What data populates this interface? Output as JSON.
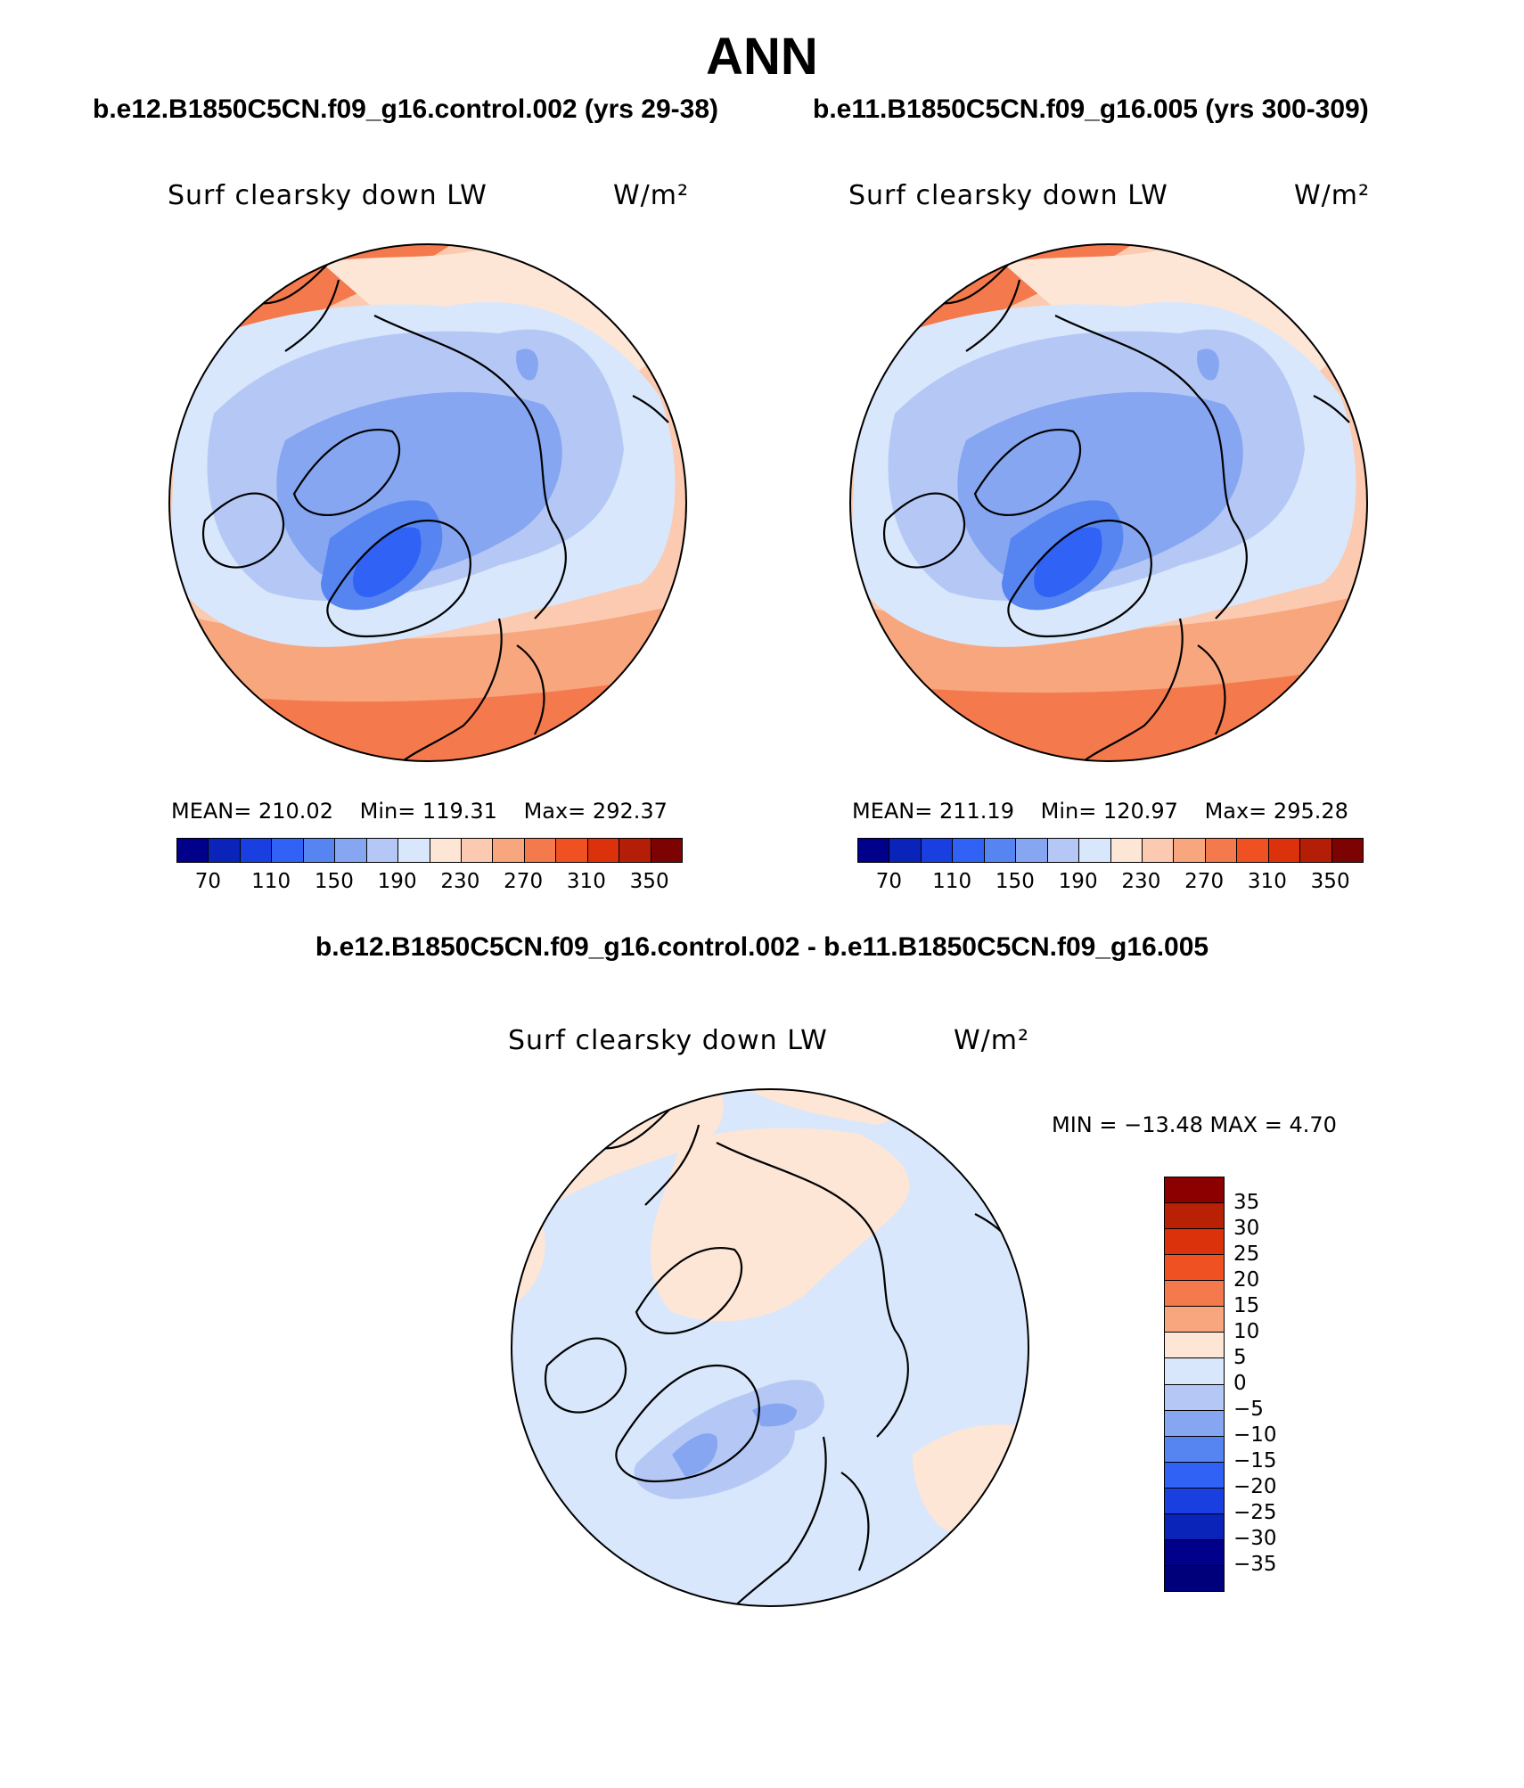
{
  "title": "ANN",
  "diff_title": "b.e12.B1850C5CN.f09_g16.control.002 - b.e11.B1850C5CN.f09_g16.005",
  "panels": [
    {
      "case_title": "b.e12.B1850C5CN.f09_g16.control.002 (yrs 29-38)",
      "variable": "Surf clearsky down LW",
      "units": "W/m²",
      "mean_label": "MEAN= 210.02",
      "min_label": "Min= 119.31",
      "max_label": "Max= 292.37"
    },
    {
      "case_title": "b.e11.B1850C5CN.f09_g16.005 (yrs 300-309)",
      "variable": "Surf clearsky down LW",
      "units": "W/m²",
      "mean_label": "MEAN= 211.19",
      "min_label": "Min= 120.97",
      "max_label": "Max= 295.28"
    }
  ],
  "diff_panel": {
    "variable": "Surf clearsky down LW",
    "units": "W/m²",
    "minmax_label": "MIN = −13.48 MAX =    4.70"
  },
  "colorbar_main": {
    "colors": [
      "#00008a",
      "#0a23b8",
      "#1a3fe0",
      "#2f62f5",
      "#5685f2",
      "#86a6f2",
      "#b5c8f5",
      "#d8e7fb",
      "#fde6d6",
      "#fbcab0",
      "#f7a67e",
      "#f47a4d",
      "#ef5123",
      "#dc320c",
      "#b51e06",
      "#7d0303"
    ],
    "tick_labels": [
      "70",
      "110",
      "150",
      "190",
      "230",
      "270",
      "310",
      "350"
    ]
  },
  "colorbar_diff": {
    "colors": [
      "#8c0000",
      "#b82104",
      "#dc320c",
      "#ef5123",
      "#f47a4d",
      "#f7a67e",
      "#fde6d6",
      "#d8e7fb",
      "#b5c8f5",
      "#86a6f2",
      "#5685f2",
      "#2f62f5",
      "#1a3fe0",
      "#0a23b8",
      "#00008a",
      "#00007a"
    ],
    "tick_labels": [
      "35",
      "30",
      "25",
      "20",
      "15",
      "10",
      "5",
      "0",
      "−5",
      "−10",
      "−15",
      "−20",
      "−25",
      "−30",
      "−35"
    ]
  }
}
